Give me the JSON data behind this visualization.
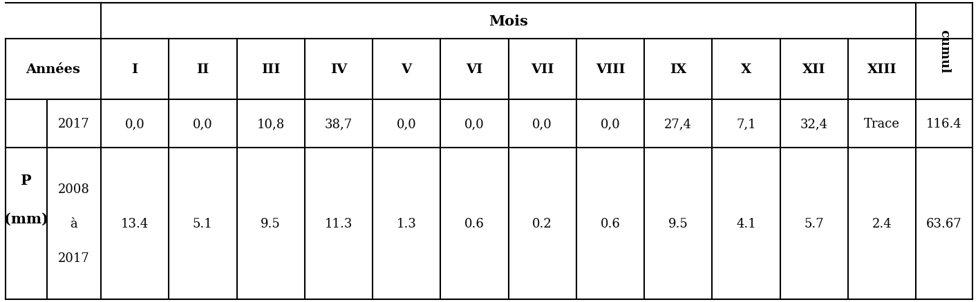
{
  "title_mois": "Mois",
  "col_header": [
    "I",
    "II",
    "III",
    "IV",
    "V",
    "VI",
    "VII",
    "VIII",
    "IX",
    "X",
    "XII",
    "XIII"
  ],
  "row_label_top": "Années",
  "left_label_1": "P",
  "left_label_2": "(mm)",
  "row1_year": "2017",
  "row2_year": "2008\n\nà\n\n2017",
  "row1_data": [
    "0,0",
    "0,0",
    "10,8",
    "38,7",
    "0,0",
    "0,0",
    "0,0",
    "0,0",
    "27,4",
    "7,1",
    "32,4",
    "Trace"
  ],
  "row1_cumul": "116.4",
  "row2_data": [
    "13.4",
    "5.1",
    "9.5",
    "11.3",
    "1.3",
    "0.6",
    "0.2",
    "0.6",
    "9.5",
    "4.1",
    "5.7",
    "2.4"
  ],
  "row2_cumul": "63.67",
  "cumul_label": "cumul",
  "bg_color": "#ffffff",
  "border_color": "#000000",
  "text_color": "#000000",
  "header_fontsize": 14,
  "data_fontsize": 13,
  "label_fontsize": 14,
  "mois_fontsize": 15,
  "cumul_fontsize": 13
}
